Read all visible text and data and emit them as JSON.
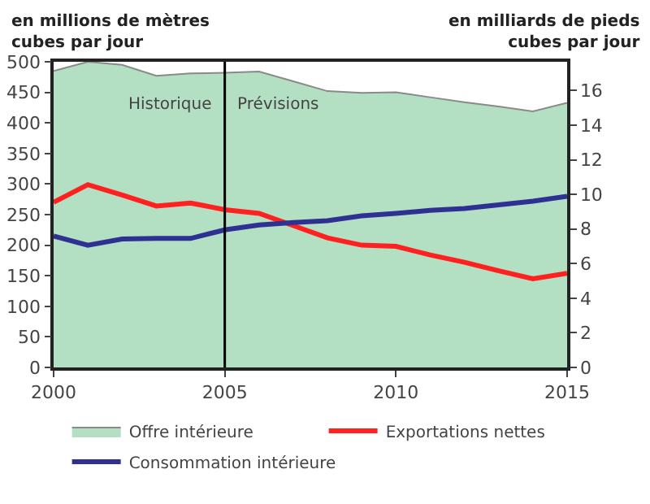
{
  "chart_data": {
    "type": "line",
    "ylabel": "en millions de mètres cubes par jour",
    "y2label": "en milliards de pieds cubes par jour",
    "x": [
      2000,
      2001,
      2002,
      2003,
      2004,
      2005,
      2006,
      2007,
      2008,
      2009,
      2010,
      2011,
      2012,
      2013,
      2014,
      2015
    ],
    "series": [
      {
        "name": "Offre intérieure",
        "type": "area",
        "color": "#b3dfc2",
        "values": [
          485,
          500,
          495,
          477,
          481,
          482,
          484,
          468,
          452,
          449,
          450,
          442,
          434,
          427,
          419,
          433
        ]
      },
      {
        "name": "Exportations nettes",
        "color": "#ff2020",
        "values": [
          270,
          299,
          282,
          264,
          269,
          258,
          252,
          232,
          212,
          200,
          198,
          184,
          172,
          158,
          145,
          154
        ]
      },
      {
        "name": "Consommation intérieure",
        "color": "#2e3192",
        "values": [
          215,
          200,
          210,
          211,
          211,
          225,
          233,
          237,
          240,
          248,
          252,
          257,
          260,
          266,
          272,
          280
        ]
      }
    ],
    "xlim": [
      2000,
      2015
    ],
    "xticks": [
      2000,
      2005,
      2010,
      2015
    ],
    "ylim": [
      0,
      500
    ],
    "yticks": [
      0,
      50,
      100,
      150,
      200,
      250,
      300,
      350,
      400,
      450,
      500
    ],
    "y2lim": [
      0,
      17.66
    ],
    "y2ticks": [
      0,
      2,
      4,
      6,
      8,
      10,
      12,
      14,
      16
    ],
    "ref_lines": [
      {
        "axis": "x",
        "value": 2005,
        "color": "#000000"
      }
    ],
    "annotations": [
      "Historique",
      "Prévisions"
    ],
    "grid": false,
    "legend": "bottom",
    "marker": "none",
    "line_style": "solid"
  }
}
